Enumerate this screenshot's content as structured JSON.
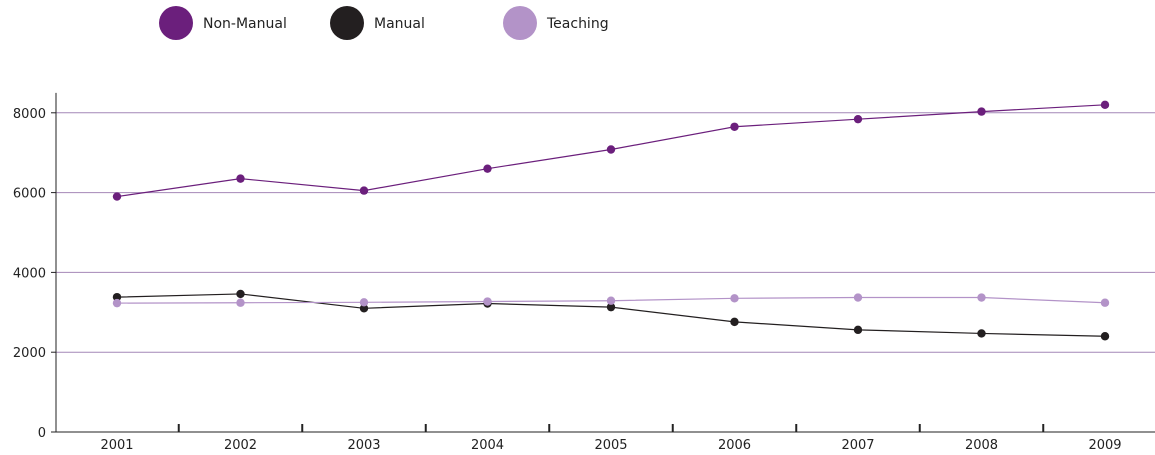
{
  "chart_data": {
    "type": "line",
    "title": "",
    "xlabel": "",
    "ylabel": "",
    "categories": [
      "2001",
      "2002",
      "2003",
      "2004",
      "2005",
      "2006",
      "2007",
      "2008",
      "2009"
    ],
    "ylim": [
      0,
      8500
    ],
    "yticks": [
      "0",
      "2000",
      "4000",
      "6000",
      "8000"
    ],
    "grid": "horizontal",
    "legend_position": "top-left",
    "series": [
      {
        "name": "Non-Manual",
        "color": "#6b1f7c",
        "values": [
          5900,
          6350,
          6050,
          6600,
          7080,
          7650,
          7840,
          8030,
          8200
        ]
      },
      {
        "name": "Manual",
        "color": "#231f20",
        "values": [
          3380,
          3460,
          3100,
          3220,
          3130,
          2760,
          2560,
          2470,
          2400
        ]
      },
      {
        "name": "Teaching",
        "color": "#b393c8",
        "values": [
          3230,
          3240,
          3250,
          3270,
          3290,
          3350,
          3370,
          3370,
          3240
        ]
      }
    ]
  }
}
